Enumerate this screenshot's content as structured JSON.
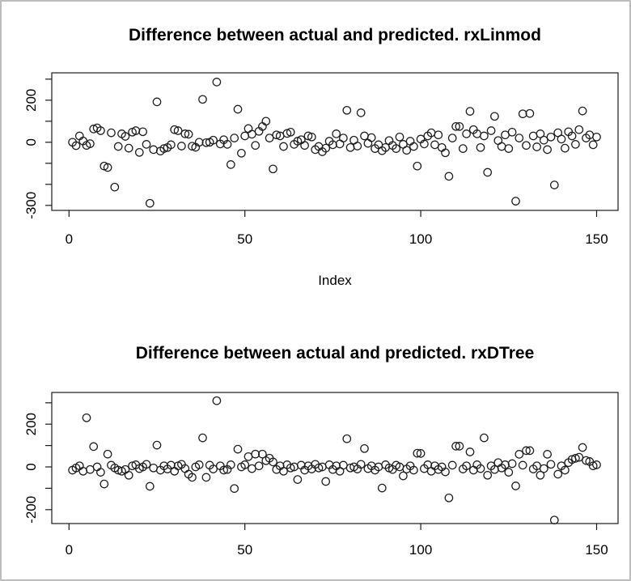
{
  "colors": {
    "window_border": "#bdbdbd",
    "background": "#ffffff",
    "frame": "#1a1a1a",
    "point_outline": "#1f1f1f"
  },
  "chart_data": [
    {
      "type": "scatter",
      "model": "rxLinmod",
      "title": "Difference between actual and predicted. rxLinmod",
      "xlabel": "Index",
      "ylabel": "",
      "marker": "open-circle",
      "grid": false,
      "legend": "none",
      "x_start": 1,
      "xlim": [
        -5,
        156
      ],
      "ylim": [
        -310,
        310
      ],
      "xticks": [
        0,
        50,
        100,
        150
      ],
      "yticks": [
        300,
        200,
        100,
        0,
        -100,
        -200,
        -300
      ],
      "ytick_labels": [
        {
          "value": 200,
          "label": "200"
        },
        {
          "value": 0,
          "label": "0"
        },
        {
          "value": -300,
          "label": "-300"
        }
      ],
      "values": [
        0,
        -16,
        30,
        6,
        -15,
        -7,
        63,
        68,
        55,
        -113,
        -120,
        45,
        -213,
        -20,
        40,
        28,
        -28,
        48,
        55,
        -48,
        50,
        -10,
        -290,
        -35,
        192,
        -42,
        -30,
        -25,
        -12,
        60,
        55,
        -18,
        40,
        38,
        -19,
        -24,
        0,
        204,
        -2,
        0,
        10,
        286,
        -8,
        12,
        -10,
        -106,
        20,
        157,
        -52,
        30,
        65,
        38,
        -15,
        52,
        75,
        100,
        20,
        -127,
        35,
        30,
        -20,
        42,
        48,
        -10,
        5,
        12,
        -15,
        30,
        25,
        -35,
        -20,
        -45,
        -28,
        5,
        -12,
        40,
        -8,
        20,
        152,
        -25,
        10,
        -18,
        140,
        30,
        -5,
        22,
        -30,
        -12,
        -40,
        -25,
        8,
        -15,
        -30,
        25,
        -10,
        -38,
        5,
        -20,
        -113,
        15,
        -8,
        30,
        45,
        -12,
        35,
        -25,
        -50,
        -162,
        20,
        75,
        75,
        -30,
        40,
        147,
        60,
        40,
        -25,
        30,
        -143,
        55,
        123,
        8,
        -20,
        35,
        -30,
        48,
        -280,
        20,
        135,
        -15,
        137,
        30,
        -22,
        40,
        10,
        -35,
        25,
        -203,
        45,
        15,
        -28,
        50,
        30,
        -10,
        60,
        149,
        20,
        35,
        -12,
        25
      ]
    },
    {
      "type": "scatter",
      "model": "rxDTree",
      "title": "Difference between actual and predicted. rxDTree",
      "xlabel": "",
      "ylabel": "",
      "marker": "open-circle",
      "grid": false,
      "legend": "none",
      "x_start": 1,
      "xlim": [
        -5,
        156
      ],
      "ylim": [
        -270,
        330
      ],
      "xticks": [
        0,
        50,
        100,
        150
      ],
      "yticks": [
        300,
        200,
        100,
        0,
        -100,
        -200
      ],
      "ytick_labels": [
        {
          "value": 200,
          "label": "200"
        },
        {
          "value": 0,
          "label": "0"
        },
        {
          "value": -200,
          "label": "-200"
        }
      ],
      "values": [
        -15,
        -5,
        5,
        -20,
        230,
        -12,
        95,
        0,
        -25,
        -80,
        60,
        8,
        -5,
        -15,
        -20,
        -12,
        -39,
        5,
        10,
        -8,
        0,
        12,
        -91,
        -5,
        102,
        -15,
        5,
        -10,
        8,
        -20,
        5,
        12,
        -8,
        -34,
        -49,
        0,
        10,
        136,
        -49,
        8,
        -10,
        310,
        5,
        -15,
        -12,
        10,
        -101,
        83,
        0,
        10,
        48,
        -8,
        60,
        5,
        60,
        29,
        41,
        23,
        -12,
        5,
        -20,
        10,
        -5,
        0,
        -59,
        8,
        -15,
        5,
        -10,
        12,
        -5,
        0,
        -68,
        10,
        -12,
        5,
        -20,
        8,
        132,
        -5,
        0,
        -10,
        12,
        86,
        -8,
        5,
        -15,
        0,
        -99,
        10,
        -5,
        -12,
        8,
        0,
        -42,
        -10,
        5,
        -15,
        64,
        63,
        -8,
        10,
        -20,
        5,
        -12,
        0,
        -23,
        -145,
        8,
        97,
        97,
        -10,
        5,
        70,
        -15,
        10,
        -8,
        136,
        -39,
        5,
        -12,
        20,
        -5,
        10,
        -25,
        15,
        -89,
        59,
        8,
        76,
        76,
        -10,
        5,
        -39,
        -8,
        59,
        12,
        -249,
        -34,
        5,
        -15,
        20,
        35,
        40,
        45,
        91,
        30,
        25,
        5,
        10
      ]
    }
  ]
}
